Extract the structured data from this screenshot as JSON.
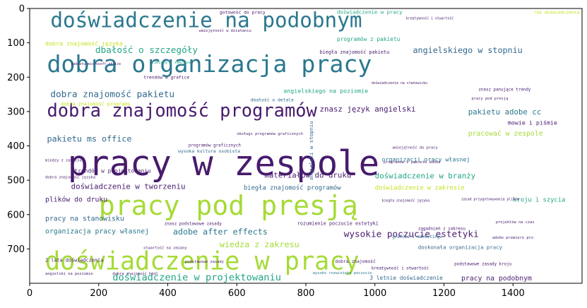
{
  "chart_data": {
    "type": "wordcloud",
    "xlim": [
      0,
      1600
    ],
    "ylim": [
      800,
      0
    ],
    "x_ticks": [
      0,
      200,
      400,
      600,
      800,
      1000,
      1200,
      1400
    ],
    "y_ticks": [
      0,
      100,
      200,
      300,
      400,
      500,
      600,
      700
    ],
    "colors": {
      "purple": "#481b6d",
      "teal": "#2a788e",
      "blue": "#31688e",
      "green": "#21a685",
      "lime": "#a5db36",
      "yellow": "#c8e020"
    },
    "words": [
      {
        "text": "doświadczenie na podobnym",
        "x": 60,
        "y": 55,
        "size": 60,
        "color": "#2a788e"
      },
      {
        "text": "dobra organizacja pracy",
        "x": 50,
        "y": 185,
        "size": 68,
        "color": "#2a788e"
      },
      {
        "text": "dobra znajomość programów",
        "x": 50,
        "y": 315,
        "size": 52,
        "color": "#481b6d"
      },
      {
        "text": "pracy w zespole",
        "x": 110,
        "y": 485,
        "size": 100,
        "color": "#481b6d"
      },
      {
        "text": "pracy pod presją",
        "x": 200,
        "y": 600,
        "size": 78,
        "color": "#a5db36"
      },
      {
        "text": "doświadczenie w pracy",
        "x": 45,
        "y": 760,
        "size": 72,
        "color": "#a5db36"
      },
      {
        "text": "dbałość o szczegóły",
        "x": 190,
        "y": 130,
        "size": 26,
        "color": "#21a685"
      },
      {
        "text": "dobra znajomość pakietu",
        "x": 60,
        "y": 258,
        "size": 26,
        "color": "#31688e"
      },
      {
        "text": "angielskiego w stopniu",
        "x": 1110,
        "y": 130,
        "size": 24,
        "color": "#31688e"
      },
      {
        "text": "znasz język angielski",
        "x": 840,
        "y": 300,
        "size": 22,
        "color": "#481b6d"
      },
      {
        "text": "pakietu ms office",
        "x": 50,
        "y": 388,
        "size": 24,
        "color": "#31688e"
      },
      {
        "text": "pakietu adobe cc",
        "x": 1270,
        "y": 308,
        "size": 22,
        "color": "#2a788e"
      },
      {
        "text": "pracować w zespole",
        "x": 1270,
        "y": 370,
        "size": 20,
        "color": "#a5db36"
      },
      {
        "text": "materiałów do druku",
        "x": 680,
        "y": 493,
        "size": 22,
        "color": "#481b6d"
      },
      {
        "text": "doświadczenie w tworzeniu",
        "x": 120,
        "y": 525,
        "size": 22,
        "color": "#481b6d"
      },
      {
        "text": "doświadczenie w branży",
        "x": 1000,
        "y": 495,
        "size": 22,
        "color": "#21a685"
      },
      {
        "text": "adobe after effects",
        "x": 415,
        "y": 658,
        "size": 24,
        "color": "#2a788e"
      },
      {
        "text": "wysokie poczucie estetyki",
        "x": 910,
        "y": 665,
        "size": 26,
        "color": "#481b6d"
      },
      {
        "text": "wiedza z zakresu",
        "x": 550,
        "y": 695,
        "size": 24,
        "color": "#a5db36"
      },
      {
        "text": "doświadczenie w projektowaniu",
        "x": 240,
        "y": 792,
        "size": 28,
        "color": "#21a685"
      },
      {
        "text": "pracy na podobnym",
        "x": 1250,
        "y": 792,
        "size": 20,
        "color": "#481b6d"
      },
      {
        "text": "organizacja pracy własnej",
        "x": 45,
        "y": 655,
        "size": 20,
        "color": "#2a788e"
      },
      {
        "text": "pracy na stanowisku",
        "x": 45,
        "y": 618,
        "size": 20,
        "color": "#31688e"
      },
      {
        "text": "plików do druku",
        "x": 45,
        "y": 562,
        "size": 20,
        "color": "#481b6d"
      },
      {
        "text": "biegła znajomość programów",
        "x": 620,
        "y": 528,
        "size": 18,
        "color": "#31688e"
      },
      {
        "text": "doświadczenie w zakresie",
        "x": 1000,
        "y": 528,
        "size": 18,
        "color": "#c8e020"
      },
      {
        "text": "organizacji pracy własnej",
        "x": 1020,
        "y": 445,
        "size": 17,
        "color": "#2a788e"
      },
      {
        "text": "angielskiego na poziomie",
        "x": 735,
        "y": 246,
        "size": 17,
        "color": "#21a685"
      },
      {
        "text": "dobra znajomość języka",
        "x": 45,
        "y": 108,
        "size": 17,
        "color": "#c8e020"
      },
      {
        "text": "programów z pakietu",
        "x": 890,
        "y": 95,
        "size": 16,
        "color": "#21a685"
      },
      {
        "text": "doświadczenie w pracy",
        "x": 890,
        "y": 15,
        "size": 15,
        "color": "#21a685"
      },
      {
        "text": "trendów w projektowaniu",
        "x": 130,
        "y": 478,
        "size": 16,
        "color": "#481b6d"
      },
      {
        "text": "kroju i szycia",
        "x": 1400,
        "y": 562,
        "size": 18,
        "color": "#21a685"
      },
      {
        "text": "mowie i piśmie",
        "x": 1385,
        "y": 338,
        "size": 17,
        "color": "#481b6d"
      },
      {
        "text": "doskonała organizacja pracy",
        "x": 1125,
        "y": 700,
        "size": 15,
        "color": "#31688e"
      },
      {
        "text": "3 letnie doświadczenie",
        "x": 985,
        "y": 790,
        "size": 16,
        "color": "#31688e"
      },
      {
        "text": "2 lata doświadczenia",
        "x": 45,
        "y": 737,
        "size": 14,
        "color": "#481b6d"
      },
      {
        "text": "rozumienie poczucie estetyki",
        "x": 775,
        "y": 630,
        "size": 14,
        "color": "#481b6d"
      },
      {
        "text": "dobra znajomość programu",
        "x": 90,
        "y": 283,
        "size": 14,
        "color": "#c8e020"
      },
      {
        "text": "biegła znajomość pakietu",
        "x": 840,
        "y": 132,
        "size": 14,
        "color": "#481b6d"
      },
      {
        "text": "angielski w stopniu",
        "x": 820,
        "y": 500,
        "size": 15,
        "color": "#31688e",
        "rotate": -90
      },
      {
        "text": "wysoka kultura osobista",
        "x": 430,
        "y": 420,
        "size": 13,
        "color": "#31688e"
      },
      {
        "text": "dbałość o detale",
        "x": 640,
        "y": 270,
        "size": 13,
        "color": "#31688e"
      },
      {
        "text": "trendów w grafice",
        "x": 330,
        "y": 205,
        "size": 13,
        "color": "#481b6d"
      },
      {
        "text": "gotowość do pracy",
        "x": 550,
        "y": 15,
        "size": 13,
        "color": "#481b6d"
      },
      {
        "text": "programów graficznych",
        "x": 460,
        "y": 402,
        "size": 12,
        "color": "#481b6d"
      },
      {
        "text": "znasz podstawowe zasady",
        "x": 390,
        "y": 630,
        "size": 12,
        "color": "#481b6d"
      },
      {
        "text": "dobra znajomość",
        "x": 885,
        "y": 740,
        "size": 13,
        "color": "#481b6d"
      },
      {
        "text": "podstawowe zasady kroju",
        "x": 1230,
        "y": 748,
        "size": 12,
        "color": "#481b6d"
      },
      {
        "text": "kreatywność i otwartość",
        "x": 990,
        "y": 760,
        "size": 12,
        "color": "#481b6d"
      },
      {
        "text": "grafice i marketingu",
        "x": 1050,
        "y": 668,
        "size": 12,
        "color": "#31688e"
      },
      {
        "text": "zagadnień z zakresu",
        "x": 1125,
        "y": 645,
        "size": 12,
        "color": "#481b6d"
      },
      {
        "text": "znasz panujące trendy",
        "x": 1300,
        "y": 240,
        "size": 12,
        "color": "#481b6d"
      },
      {
        "text": "adobe premiere pro",
        "x": 1340,
        "y": 670,
        "size": 11,
        "color": "#481b6d"
      },
      {
        "text": "projektów na czas",
        "x": 1350,
        "y": 625,
        "size": 11,
        "color": "#481b6d"
      },
      {
        "text": "otwartość na zmiany",
        "x": 330,
        "y": 700,
        "size": 11,
        "color": "#481b6d"
      },
      {
        "text": "angielski na poziomie",
        "x": 45,
        "y": 775,
        "size": 11,
        "color": "#481b6d"
      },
      {
        "text": "dobra znajomość języka",
        "x": 45,
        "y": 495,
        "size": 11,
        "color": "#481b6d"
      },
      {
        "text": "miedzy z zakresu",
        "x": 45,
        "y": 445,
        "size": 11,
        "color": "#481b6d"
      },
      {
        "text": "programów z pakietu adobe",
        "x": 1025,
        "y": 450,
        "size": 11,
        "color": "#481b6d"
      },
      {
        "text": "zmiany z zakresu",
        "x": 360,
        "y": 160,
        "size": 11,
        "color": "#21a685"
      },
      {
        "text": "podstawowe zasady",
        "x": 450,
        "y": 740,
        "size": 11,
        "color": "#481b6d"
      },
      {
        "text": "umiejętność w działaniu",
        "x": 490,
        "y": 68,
        "size": 11,
        "color": "#481b6d"
      },
      {
        "text": "dobra znajomość html",
        "x": 240,
        "y": 775,
        "size": 11,
        "color": "#481b6d"
      },
      {
        "text": "zasad przygotowywania plików",
        "x": 1250,
        "y": 558,
        "size": 10,
        "color": "#481b6d"
      },
      {
        "text": "wysoko rozwinięte poczucie",
        "x": 820,
        "y": 773,
        "size": 11,
        "color": "#2a788e"
      },
      {
        "text": "rok doświadczenia",
        "x": 1460,
        "y": 15,
        "size": 13,
        "color": "#c8e020"
      },
      {
        "text": "umiejętność do pracy",
        "x": 1050,
        "y": 408,
        "size": 11,
        "color": "#481b6d"
      },
      {
        "text": "pracy pod presją",
        "x": 1280,
        "y": 265,
        "size": 11,
        "color": "#481b6d"
      },
      {
        "text": "kreatywność i otwartość",
        "x": 1090,
        "y": 32,
        "size": 10,
        "color": "#481b6d"
      },
      {
        "text": "obsługi programów graficznych",
        "x": 600,
        "y": 368,
        "size": 11,
        "color": "#481b6d"
      },
      {
        "text": "pakietu microsoft office",
        "x": 120,
        "y": 165,
        "size": 10,
        "color": "#481b6d"
      },
      {
        "text": "doświadczenie na stanowisku",
        "x": 990,
        "y": 220,
        "size": 10,
        "color": "#481b6d"
      },
      {
        "text": "biegła znajomość języka",
        "x": 1020,
        "y": 562,
        "size": 10,
        "color": "#481b6d"
      }
    ]
  }
}
